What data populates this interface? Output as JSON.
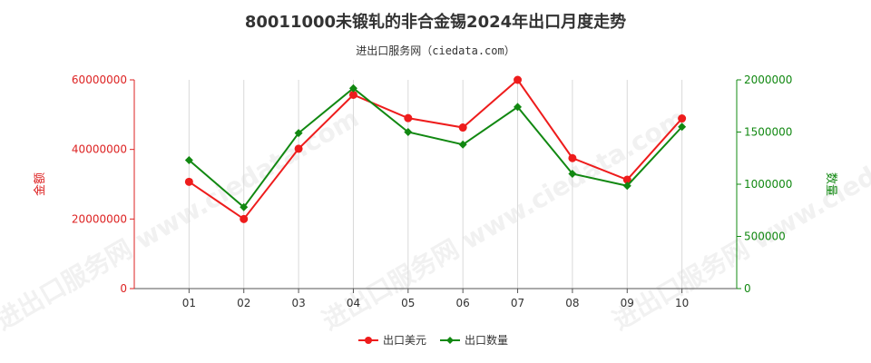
{
  "chart_data": {
    "type": "line",
    "title": "80011000未锻轧的非合金锡2024年出口月度走势",
    "subtitle": "进出口服务网（ciedata.com）",
    "categories": [
      "01",
      "02",
      "03",
      "04",
      "05",
      "06",
      "07",
      "08",
      "09",
      "10"
    ],
    "y_left": {
      "label": "金额",
      "range": [
        0,
        60000000
      ],
      "ticks": [
        0,
        20000000,
        40000000,
        60000000
      ],
      "tick_labels": [
        "0",
        "20000000",
        "40000000",
        "60000000"
      ],
      "color": "#dd2222"
    },
    "y_right": {
      "label": "数量",
      "range": [
        0,
        2000000
      ],
      "ticks": [
        0,
        500000,
        1000000,
        1500000,
        2000000
      ],
      "tick_labels": [
        "0",
        "500000",
        "1000000",
        "1500000",
        "2000000"
      ],
      "color": "#118811"
    },
    "series": [
      {
        "name": "出口美元",
        "axis": "left",
        "color": "#ee1c1c",
        "values": [
          30700000,
          20000000,
          40200000,
          55700000,
          49000000,
          46300000,
          60000000,
          37500000,
          31300000,
          48900000
        ]
      },
      {
        "name": "出口数量",
        "axis": "right",
        "color": "#118811",
        "values": [
          1230000,
          780000,
          1490000,
          1920000,
          1500000,
          1380000,
          1740000,
          1100000,
          985000,
          1550000
        ]
      }
    ],
    "grid": "vertical",
    "legend_position": "bottom-center",
    "watermark": "进出口服务网 www.ciedata.com"
  }
}
